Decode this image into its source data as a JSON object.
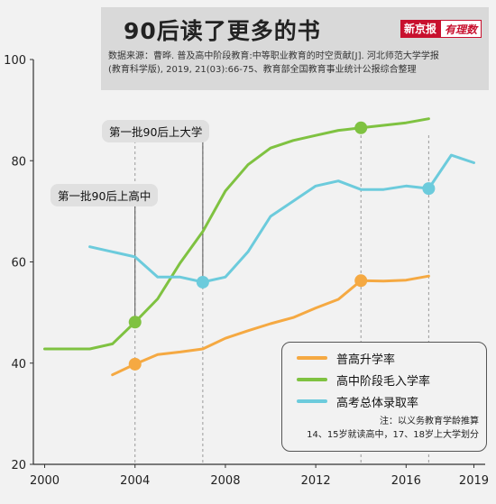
{
  "header": {
    "title": "90后读了更多的书",
    "source_line1": "数据来源：曹晔. 普及高中阶段教育:中等职业教育的时空贡献[J]. 河北师范大学学报",
    "source_line2": "(教育科学版), 2019, 21(03):66-75、教育部全国教育事业统计公报综合整理",
    "logo_part1": "新京报",
    "logo_part2": "有理数"
  },
  "callouts": {
    "first_university": "第一批90后上大学",
    "first_highschool": "第一批90后上高中"
  },
  "legend": {
    "note_line1": "注：以义务教育学龄推算",
    "note_line2": "14、15岁就读高中，17、18岁上大学划分"
  },
  "chart_data": {
    "type": "line",
    "title": "90后读了更多的书",
    "x_ticks": [
      "2000",
      "2004",
      "2008",
      "2012",
      "2016",
      "2019"
    ],
    "y_ticks": [
      "20",
      "40",
      "60",
      "80",
      "100"
    ],
    "xlim": [
      1999.5,
      2019.5
    ],
    "ylim": [
      20,
      100
    ],
    "grid": false,
    "legend_position": "bottom-right",
    "highlight_years": [
      2004,
      2007,
      2014,
      2017
    ],
    "series": [
      {
        "name": "普高升学率",
        "color": "#f5a942",
        "points": [
          [
            2003,
            37.7
          ],
          [
            2004,
            39.8
          ],
          [
            2005,
            41.7
          ],
          [
            2006,
            42.2
          ],
          [
            2007,
            42.8
          ],
          [
            2008,
            44.9
          ],
          [
            2009,
            46.4
          ],
          [
            2010,
            47.8
          ],
          [
            2011,
            49.0
          ],
          [
            2012,
            50.9
          ],
          [
            2013,
            52.6
          ],
          [
            2014,
            56.3
          ],
          [
            2015,
            56.2
          ],
          [
            2016,
            56.4
          ],
          [
            2017,
            57.2
          ]
        ],
        "markers": [
          [
            2004,
            39.8
          ],
          [
            2014,
            56.3
          ]
        ]
      },
      {
        "name": "高中阶段毛入学率",
        "color": "#7fc241",
        "points": [
          [
            2000,
            42.8
          ],
          [
            2001,
            42.8
          ],
          [
            2002,
            42.8
          ],
          [
            2003,
            43.8
          ],
          [
            2004,
            48.1
          ],
          [
            2005,
            52.7
          ],
          [
            2006,
            59.8
          ],
          [
            2007,
            66.0
          ],
          [
            2008,
            74.0
          ],
          [
            2009,
            79.2
          ],
          [
            2010,
            82.5
          ],
          [
            2011,
            84.0
          ],
          [
            2012,
            85.0
          ],
          [
            2013,
            86.0
          ],
          [
            2014,
            86.5
          ],
          [
            2015,
            87.0
          ],
          [
            2016,
            87.5
          ],
          [
            2017,
            88.3
          ]
        ],
        "markers": [
          [
            2004,
            48.1
          ],
          [
            2014,
            86.5
          ]
        ]
      },
      {
        "name": "高考总体录取率",
        "color": "#6ccbdc",
        "points": [
          [
            2002,
            63.0
          ],
          [
            2003,
            62.0
          ],
          [
            2004,
            61.0
          ],
          [
            2005,
            57.0
          ],
          [
            2006,
            57.0
          ],
          [
            2007,
            56.0
          ],
          [
            2008,
            57.0
          ],
          [
            2009,
            62.0
          ],
          [
            2010,
            69.0
          ],
          [
            2011,
            72.0
          ],
          [
            2012,
            75.0
          ],
          [
            2013,
            76.0
          ],
          [
            2014,
            74.3
          ],
          [
            2015,
            74.3
          ],
          [
            2016,
            75.0
          ],
          [
            2017,
            74.5
          ],
          [
            2018,
            81.1
          ],
          [
            2019,
            79.6
          ]
        ],
        "markers": [
          [
            2007,
            56.0
          ],
          [
            2017,
            74.5
          ]
        ]
      }
    ]
  }
}
